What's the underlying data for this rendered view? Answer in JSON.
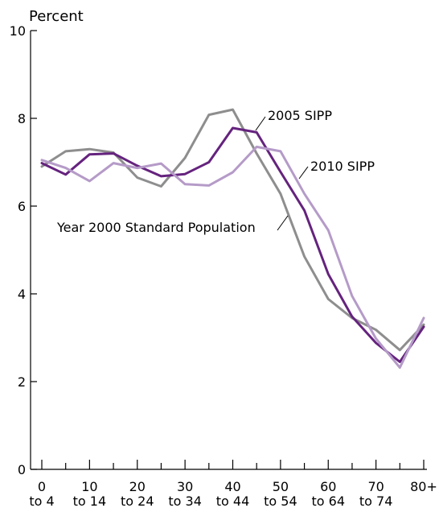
{
  "chart_data": {
    "type": "line",
    "ylabel": "Percent",
    "ylim": [
      0,
      10
    ],
    "yticks": [
      0,
      2,
      4,
      6,
      8,
      10
    ],
    "x": [
      0,
      5,
      10,
      15,
      20,
      25,
      30,
      35,
      40,
      45,
      50,
      55,
      60,
      65,
      70,
      75,
      80
    ],
    "xlim": [
      0,
      80
    ],
    "xtick_labels": [
      {
        "line1": "0",
        "line2": "to 4"
      },
      {
        "line1": "10",
        "line2": "to 14"
      },
      {
        "line1": "20",
        "line2": "to 24"
      },
      {
        "line1": "30",
        "line2": "to 34"
      },
      {
        "line1": "40",
        "line2": "to 44"
      },
      {
        "line1": "50",
        "line2": "to 54"
      },
      {
        "line1": "60",
        "line2": "to 64"
      },
      {
        "line1": "70",
        "line2": "to 74"
      },
      {
        "line1": "80+",
        "line2": ""
      }
    ],
    "series": [
      {
        "name": "Year 2000 Standard Population",
        "color": "#8e8e8e",
        "values": [
          6.9,
          7.25,
          7.3,
          7.22,
          6.65,
          6.45,
          7.1,
          8.08,
          8.2,
          7.2,
          6.28,
          4.85,
          3.88,
          3.45,
          3.18,
          2.72,
          3.3
        ]
      },
      {
        "name": "2005 SIPP",
        "color": "#65237e",
        "values": [
          6.98,
          6.72,
          7.18,
          7.2,
          6.92,
          6.68,
          6.73,
          7.0,
          7.78,
          7.68,
          6.78,
          5.9,
          4.45,
          3.48,
          2.88,
          2.45,
          3.25
        ]
      },
      {
        "name": "2010 SIPP",
        "color": "#b59bc8",
        "values": [
          7.05,
          6.87,
          6.57,
          6.98,
          6.87,
          6.97,
          6.5,
          6.47,
          6.77,
          7.35,
          7.25,
          6.28,
          5.45,
          3.95,
          2.98,
          2.32,
          3.45
        ]
      }
    ],
    "annotations": [
      "2005 SIPP",
      "2010 SIPP",
      "Year 2000 Standard Population"
    ]
  }
}
